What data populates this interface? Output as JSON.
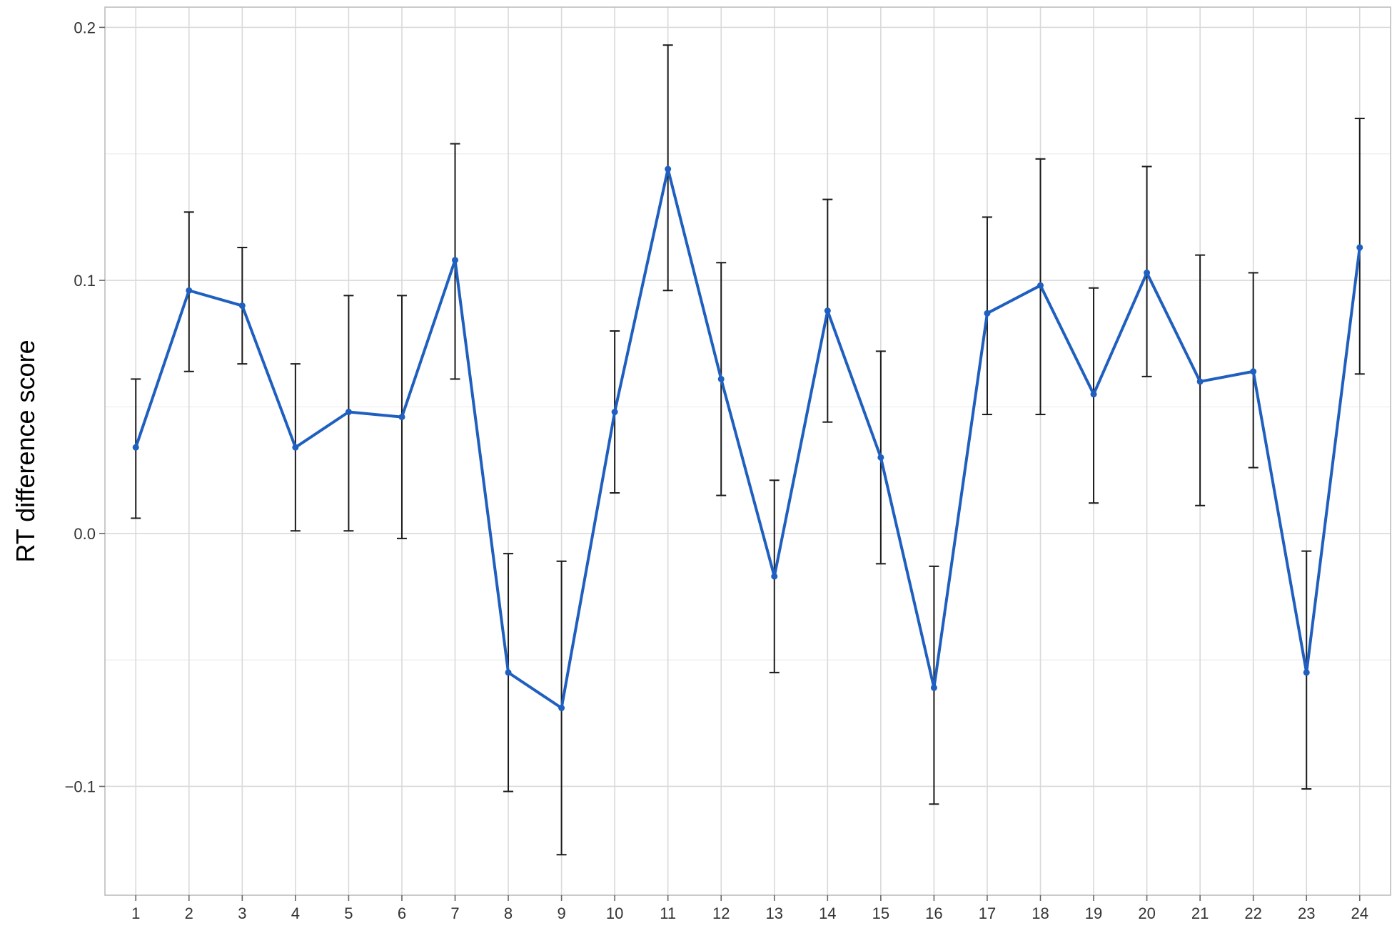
{
  "chart_data": {
    "type": "line",
    "title": "",
    "xlabel": "",
    "ylabel": "RT difference score",
    "x": [
      1,
      2,
      3,
      4,
      5,
      6,
      7,
      8,
      9,
      10,
      11,
      12,
      13,
      14,
      15,
      16,
      17,
      18,
      19,
      20,
      21,
      22,
      23,
      24
    ],
    "x_tick_labels": [
      "1",
      "2",
      "3",
      "4",
      "5",
      "6",
      "7",
      "8",
      "9",
      "10",
      "11",
      "12",
      "13",
      "14",
      "15",
      "16",
      "17",
      "18",
      "19",
      "20",
      "21",
      "22",
      "23",
      "24"
    ],
    "y_ticks": [
      -0.1,
      0.0,
      0.1,
      0.2
    ],
    "y_tick_labels": [
      "−0.1",
      "0.0",
      "0.1",
      "0.2"
    ],
    "ylim": [
      -0.143,
      0.208
    ],
    "xlim": [
      0.42,
      24.58
    ],
    "grid": true,
    "legend": "none",
    "series": [
      {
        "color": "#1f5fbf",
        "values": [
          0.034,
          0.096,
          0.09,
          0.034,
          0.048,
          0.046,
          0.108,
          -0.055,
          -0.069,
          0.048,
          0.144,
          0.061,
          -0.017,
          0.088,
          0.03,
          -0.061,
          0.087,
          0.098,
          0.055,
          0.103,
          0.06,
          0.064,
          -0.055,
          0.113
        ],
        "error_low": [
          0.006,
          0.064,
          0.067,
          0.001,
          0.001,
          -0.002,
          0.061,
          -0.102,
          -0.127,
          0.016,
          0.096,
          0.015,
          -0.055,
          0.044,
          -0.012,
          -0.107,
          0.047,
          0.047,
          0.012,
          0.062,
          0.011,
          0.026,
          -0.101,
          0.063
        ],
        "error_high": [
          0.061,
          0.127,
          0.113,
          0.067,
          0.094,
          0.094,
          0.154,
          -0.008,
          -0.011,
          0.08,
          0.193,
          0.107,
          0.021,
          0.132,
          0.072,
          -0.013,
          0.125,
          0.148,
          0.097,
          0.145,
          0.11,
          0.103,
          -0.007,
          0.164
        ]
      }
    ],
    "colors": {
      "line": "#1f5fbf",
      "errorbar": "#1a1a1a",
      "grid": "#d9d9d9"
    }
  }
}
